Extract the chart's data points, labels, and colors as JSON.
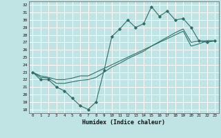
{
  "xlabel": "Humidex (Indice chaleur)",
  "xlim": [
    -0.5,
    23.5
  ],
  "ylim": [
    17.5,
    32.5
  ],
  "xticks": [
    0,
    1,
    2,
    3,
    4,
    5,
    6,
    7,
    8,
    9,
    10,
    11,
    12,
    13,
    14,
    15,
    16,
    17,
    18,
    19,
    20,
    21,
    22,
    23
  ],
  "yticks": [
    18,
    19,
    20,
    21,
    22,
    23,
    24,
    25,
    26,
    27,
    28,
    29,
    30,
    31,
    32
  ],
  "bg_color": "#c0e4e4",
  "grid_color": "#ffffff",
  "line_color": "#2d7068",
  "line1_x": [
    0,
    1,
    2,
    3,
    4,
    5,
    6,
    7,
    8,
    9,
    10,
    11,
    12,
    13,
    14,
    15,
    16,
    17,
    18,
    19,
    20,
    21,
    22,
    23
  ],
  "line1_y": [
    23.0,
    22.0,
    22.0,
    21.0,
    20.5,
    19.5,
    18.5,
    18.0,
    19.0,
    23.2,
    27.8,
    28.8,
    30.0,
    29.0,
    29.5,
    31.8,
    30.5,
    31.2,
    30.0,
    30.2,
    29.0,
    27.2,
    27.0,
    27.2
  ],
  "line2_x": [
    0,
    1,
    2,
    3,
    4,
    5,
    6,
    7,
    8,
    9,
    10,
    11,
    12,
    13,
    14,
    15,
    16,
    17,
    18,
    19,
    20,
    21,
    22,
    23
  ],
  "line2_y": [
    23.0,
    22.5,
    22.3,
    22.0,
    22.0,
    22.2,
    22.5,
    22.5,
    23.0,
    23.5,
    24.0,
    24.5,
    25.0,
    25.5,
    26.0,
    26.5,
    27.0,
    27.5,
    28.0,
    28.5,
    26.5,
    26.8,
    27.2,
    27.2
  ],
  "line3_x": [
    0,
    1,
    2,
    3,
    4,
    5,
    6,
    7,
    8,
    9,
    10,
    11,
    12,
    13,
    14,
    15,
    16,
    17,
    18,
    19,
    20,
    21,
    22,
    23
  ],
  "line3_y": [
    23.0,
    22.3,
    22.2,
    21.5,
    21.5,
    21.7,
    21.9,
    22.0,
    22.3,
    23.0,
    23.7,
    24.2,
    24.8,
    25.3,
    25.8,
    26.5,
    27.1,
    27.7,
    28.3,
    28.8,
    27.0,
    27.2,
    27.2,
    27.2
  ]
}
